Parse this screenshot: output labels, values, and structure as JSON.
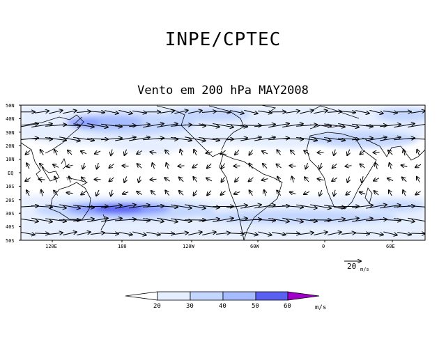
{
  "header": {
    "title": "INPE/CPTEC",
    "subtitle": "Vento em 200 hPa MAY2008"
  },
  "map": {
    "lat_labels": [
      "50N",
      "40N",
      "30N",
      "20N",
      "10N",
      "EQ",
      "10S",
      "20S",
      "30S",
      "40S",
      "50S"
    ],
    "lon_labels": [
      "120E",
      "180",
      "120W",
      "60W",
      "0",
      "60E"
    ],
    "reference_vector": {
      "value": "20",
      "unit": "m/s"
    }
  },
  "colorbar": {
    "ticks": [
      "20",
      "30",
      "40",
      "50",
      "60"
    ],
    "unit": "m/s",
    "colors": [
      "#ffffff",
      "#e6efff",
      "#c4d7ff",
      "#a6bcff",
      "#8a9dff",
      "#5a60f2",
      "#a000c8"
    ]
  }
}
